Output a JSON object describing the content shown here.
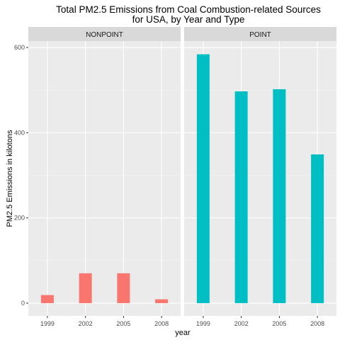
{
  "chart_data": {
    "type": "bar",
    "title_line1": "Total PM2.5 Emissions from Coal Combustion-related Sources",
    "title_line2": "for USA, by Year and Type",
    "xlabel": "year",
    "ylabel": "PM2.5 Emissions in kilotons",
    "categories": [
      "1999",
      "2002",
      "2005",
      "2008"
    ],
    "y_ticks": [
      "0",
      "200",
      "400",
      "600"
    ],
    "ylim": [
      -30,
      615
    ],
    "grid": true,
    "legend": "none",
    "panels": [
      {
        "name": "NONPOINT",
        "color": "#F8766D",
        "values": [
          19,
          70,
          70,
          9
        ]
      },
      {
        "name": "POINT",
        "color": "#00BFC4",
        "values": [
          584,
          497,
          502,
          349
        ]
      }
    ]
  }
}
